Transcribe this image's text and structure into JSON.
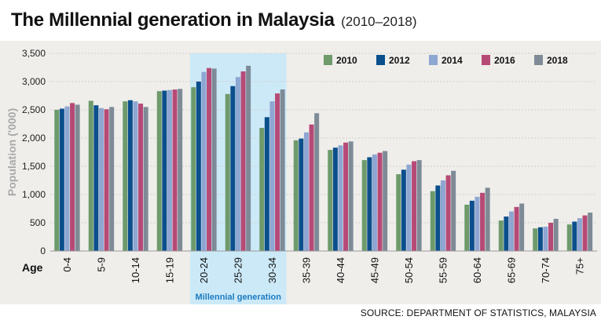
{
  "title": "The Millennial generation in Malaysia",
  "subtitle": "(2010–2018)",
  "source": "SOURCE: DEPARTMENT OF STATISTICS, MALAYSIA",
  "highlight_label": "Millennial generation",
  "x_axis_lead_label": "Age",
  "colors": {
    "2010": "#6e9a6c",
    "2012": "#0b4f8c",
    "2014": "#8ea6d2",
    "2016": "#b64a77",
    "2018": "#7e8b97",
    "highlight": "#cce9f8",
    "panel": "#efeeea",
    "grid": "#d0d0cc"
  },
  "chart_data": {
    "type": "bar",
    "ylabel": "Population ('000)",
    "xlabel": "Age",
    "ylim": [
      0,
      3500
    ],
    "yticks": [
      0,
      500,
      1000,
      1500,
      2000,
      2500,
      3000,
      3500
    ],
    "ytick_labels": [
      "0",
      "500",
      "1,000",
      "1,500",
      "2,000",
      "2,500",
      "3,000",
      "3,500"
    ],
    "grid": true,
    "legend_position": "top-right",
    "highlight_categories": [
      "20-24",
      "25-29",
      "30-34"
    ],
    "categories": [
      "0-4",
      "5-9",
      "10-14",
      "15-19",
      "20-24",
      "25-29",
      "30-34",
      "35-39",
      "40-44",
      "45-49",
      "50-54",
      "55-59",
      "60-64",
      "65-69",
      "70-74",
      "75+"
    ],
    "series": [
      {
        "name": "2010",
        "values": [
          2500,
          2660,
          2650,
          2830,
          2900,
          2780,
          2180,
          1960,
          1790,
          1610,
          1360,
          1060,
          820,
          540,
          400,
          470
        ]
      },
      {
        "name": "2012",
        "values": [
          2520,
          2580,
          2670,
          2840,
          3000,
          2920,
          2370,
          1990,
          1830,
          1660,
          1440,
          1160,
          890,
          610,
          420,
          520
        ]
      },
      {
        "name": "2014",
        "values": [
          2560,
          2530,
          2650,
          2850,
          3170,
          3080,
          2650,
          2100,
          1870,
          1710,
          1530,
          1250,
          960,
          700,
          430,
          580
        ]
      },
      {
        "name": "2016",
        "values": [
          2620,
          2510,
          2610,
          2860,
          3240,
          3180,
          2790,
          2240,
          1920,
          1740,
          1590,
          1340,
          1030,
          780,
          500,
          630
        ]
      },
      {
        "name": "2018",
        "values": [
          2590,
          2550,
          2550,
          2870,
          3230,
          3280,
          2860,
          2440,
          1940,
          1770,
          1610,
          1420,
          1120,
          840,
          570,
          680
        ]
      }
    ]
  }
}
